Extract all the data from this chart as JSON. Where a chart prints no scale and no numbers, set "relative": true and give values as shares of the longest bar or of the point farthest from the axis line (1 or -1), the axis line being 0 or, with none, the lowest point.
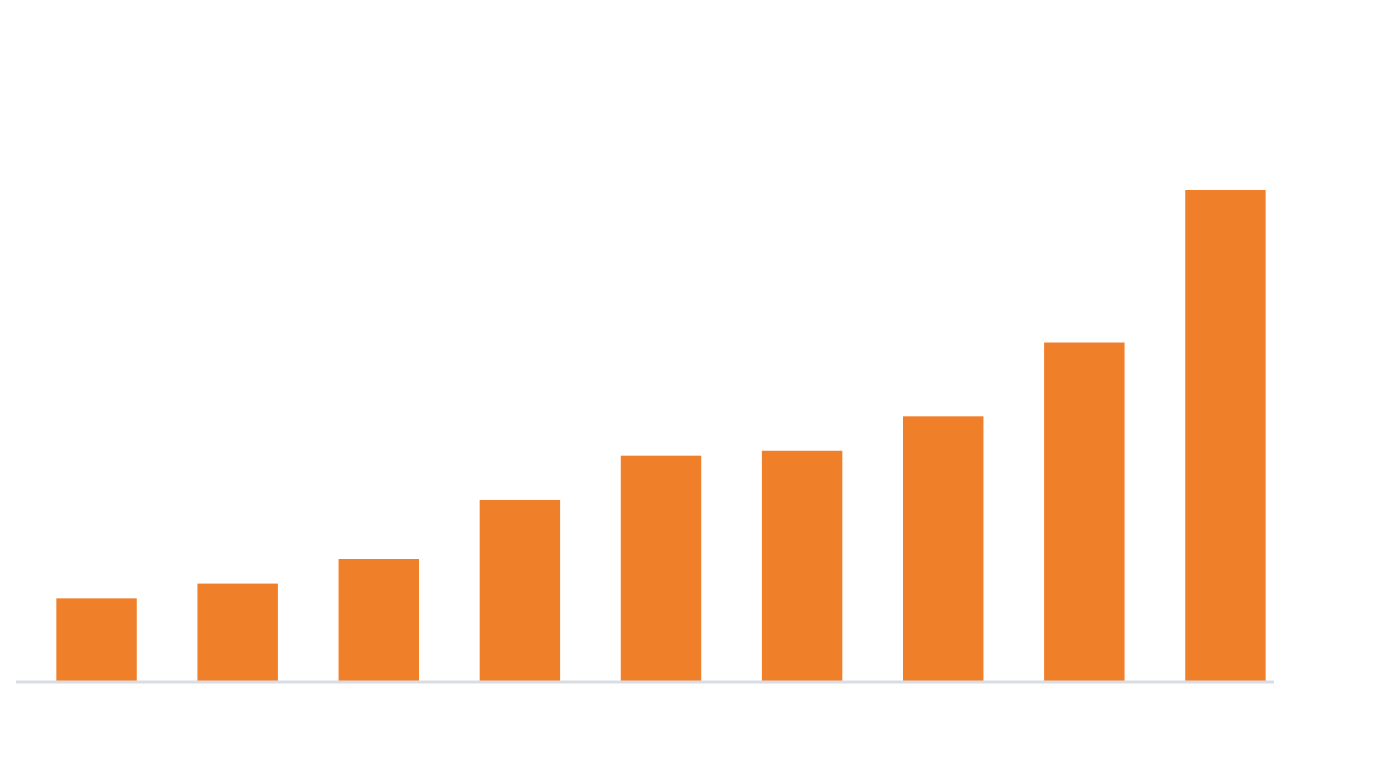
{
  "chart_data": {
    "type": "bar",
    "relative": true,
    "categories": [
      null,
      null,
      null,
      null,
      null,
      null,
      null,
      null,
      null
    ],
    "values": [
      0.17,
      0.2,
      0.25,
      0.37,
      0.46,
      0.47,
      0.54,
      0.69,
      1
    ],
    "color": "#f07f2a"
  }
}
